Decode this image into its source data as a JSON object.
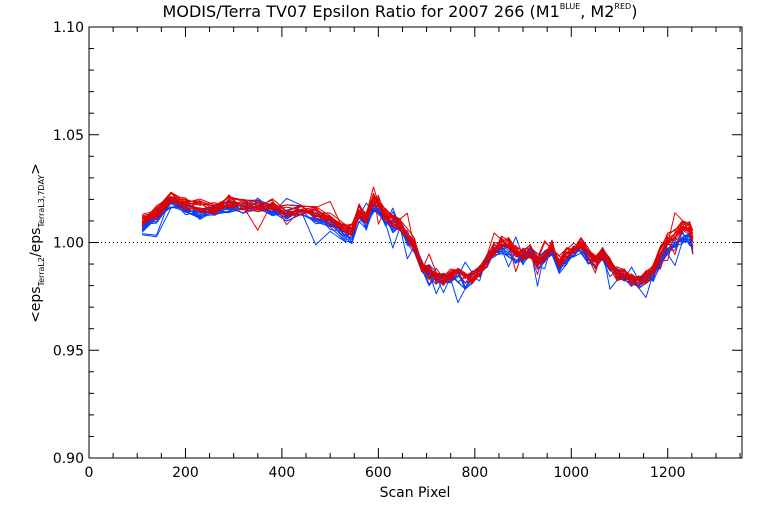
{
  "chart_data": {
    "type": "line",
    "title": {
      "prefix": "MODIS/Terra TV07 Epsilon Ratio for 2007 266 (M1",
      "sup1": "BLUE",
      "middle": ", M2",
      "sup2": "RED",
      "suffix": ")"
    },
    "xlabel": "Scan Pixel",
    "ylabel": {
      "open": "<eps",
      "sub1": "TerraL2",
      "mid": "/eps",
      "sub2": "TerraL3,7DAY",
      "close": ">"
    },
    "xlim": [
      0,
      1354
    ],
    "ylim": [
      0.9,
      1.1
    ],
    "x_ticks": [
      0,
      200,
      400,
      600,
      800,
      1000,
      1200
    ],
    "x_tick_labels": [
      "0",
      "200",
      "400",
      "600",
      "800",
      "1000",
      "1200"
    ],
    "y_ticks": [
      0.9,
      0.95,
      1.0,
      1.05,
      1.1
    ],
    "y_tick_labels": [
      "0.90",
      "0.95",
      "1.00",
      "1.05",
      "1.10"
    ],
    "reference_line": 1.0,
    "x": [
      110,
      140,
      170,
      200,
      230,
      260,
      290,
      320,
      350,
      380,
      410,
      440,
      470,
      500,
      530,
      545,
      560,
      575,
      590,
      600,
      615,
      630,
      645,
      660,
      675,
      690,
      705,
      720,
      735,
      750,
      765,
      780,
      795,
      810,
      825,
      840,
      855,
      870,
      885,
      900,
      915,
      930,
      945,
      960,
      975,
      990,
      1005,
      1020,
      1035,
      1050,
      1065,
      1080,
      1095,
      1110,
      1125,
      1140,
      1155,
      1170,
      1185,
      1200,
      1215,
      1230,
      1245,
      1252
    ],
    "series": [
      {
        "color": "#0040ff",
        "group": "M1",
        "values": [
          1.007,
          1.012,
          1.019,
          1.016,
          1.014,
          1.015,
          1.017,
          1.016,
          1.018,
          1.015,
          1.013,
          1.016,
          1.012,
          1.009,
          1.004,
          1.003,
          1.013,
          1.009,
          1.017,
          1.016,
          1.011,
          1.008,
          1.009,
          1.002,
          0.999,
          0.99,
          0.986,
          0.984,
          0.983,
          0.985,
          0.985,
          0.982,
          0.984,
          0.987,
          0.992,
          0.995,
          0.998,
          0.996,
          0.994,
          0.993,
          0.996,
          0.99,
          0.994,
          0.997,
          0.989,
          0.993,
          0.996,
          0.998,
          0.993,
          0.991,
          0.995,
          0.99,
          0.986,
          0.985,
          0.983,
          0.982,
          0.984,
          0.985,
          0.992,
          0.998,
          1.0,
          1.003,
          1.002,
          0.998
        ]
      },
      {
        "color": "#e00000",
        "group": "M2",
        "values": [
          1.009,
          1.013,
          1.02,
          1.017,
          1.016,
          1.015,
          1.018,
          1.017,
          1.016,
          1.016,
          1.014,
          1.014,
          1.013,
          1.01,
          1.006,
          1.005,
          1.014,
          1.011,
          1.019,
          1.018,
          1.012,
          1.009,
          1.007,
          1.003,
          0.998,
          0.988,
          0.985,
          0.983,
          0.982,
          0.984,
          0.986,
          0.983,
          0.983,
          0.986,
          0.991,
          0.996,
          0.999,
          0.998,
          0.995,
          0.994,
          0.995,
          0.991,
          0.993,
          0.998,
          0.99,
          0.994,
          0.996,
          0.999,
          0.994,
          0.99,
          0.994,
          0.989,
          0.985,
          0.984,
          0.982,
          0.981,
          0.983,
          0.987,
          0.995,
          1.001,
          1.004,
          1.007,
          1.006,
          1.002
        ]
      }
    ],
    "grid": false,
    "legend": "none"
  }
}
